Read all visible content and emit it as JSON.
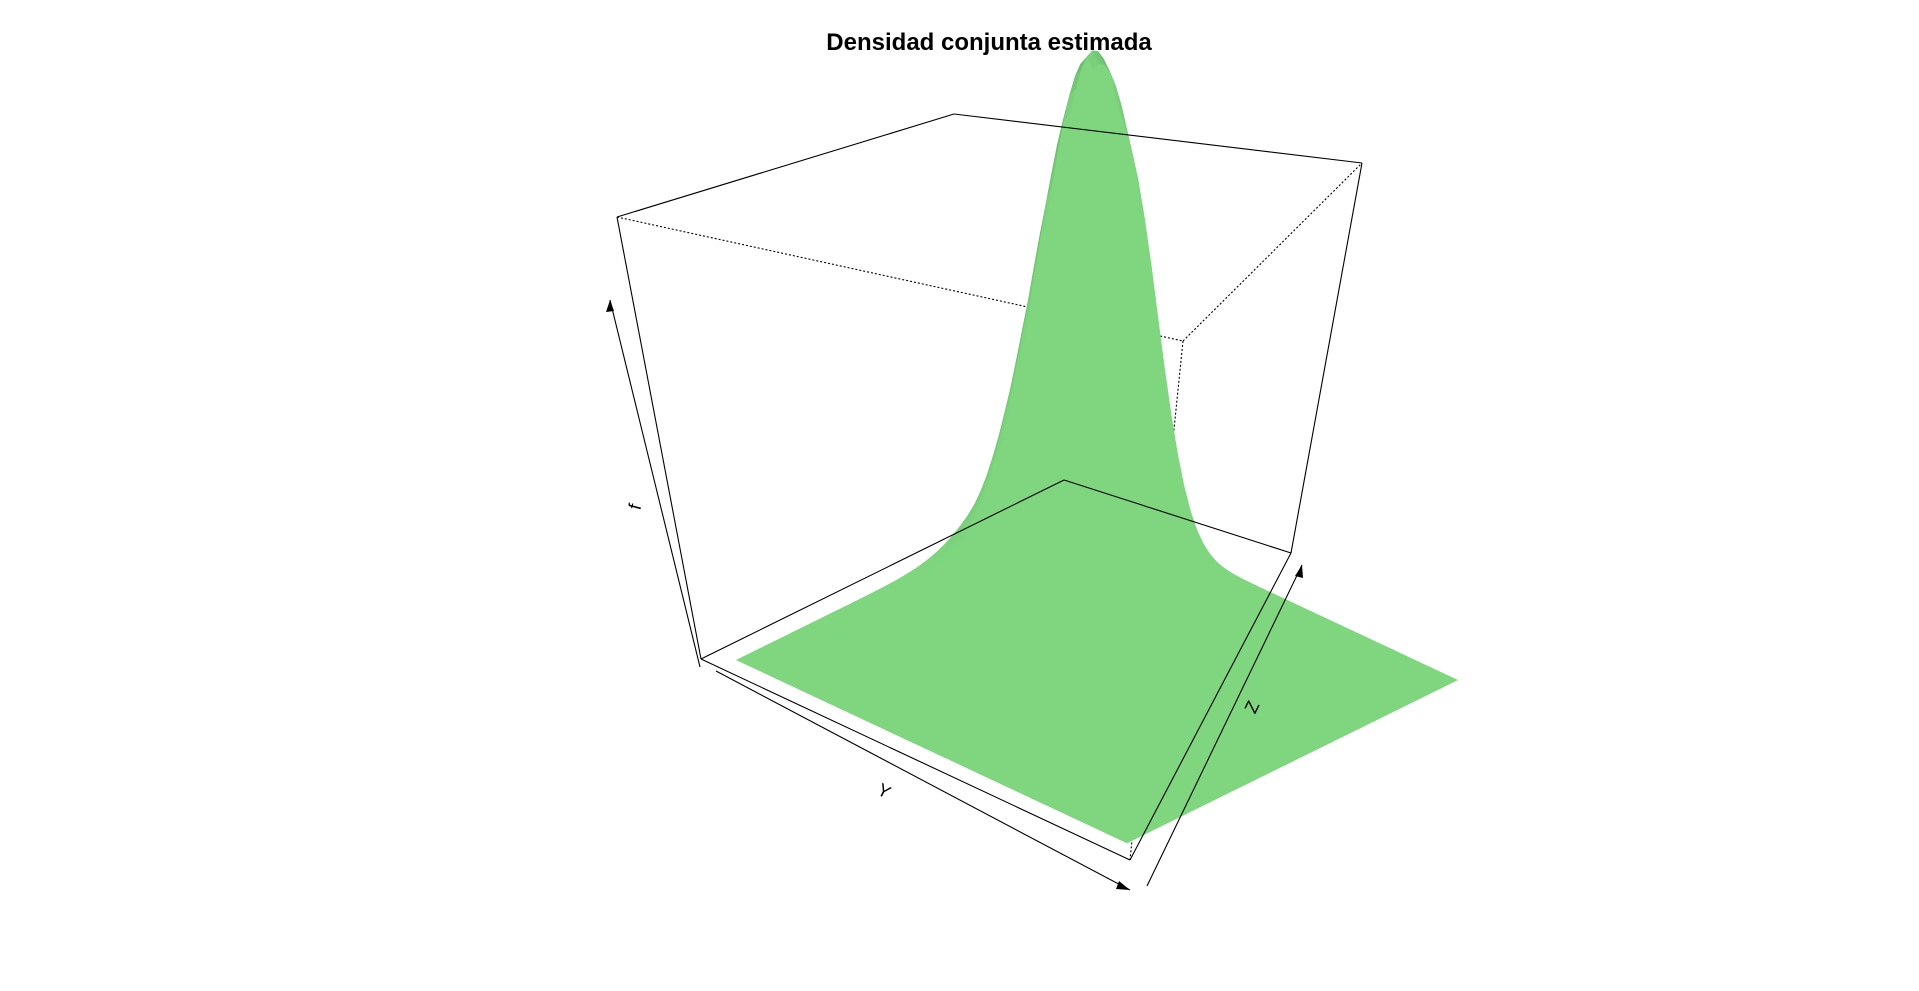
{
  "chart_data": {
    "type": "surface3d",
    "title": "Densidad conjunta estimada",
    "xlabel": "Y",
    "ylabel": "Z",
    "zlabel": "f",
    "surface_color": "#7fd67f",
    "shadow_color": "#4a8f52",
    "box": true,
    "axes_arrows": true,
    "peak": {
      "y": 0.15,
      "z": 0.9,
      "f_relative": 1.0
    },
    "spread": {
      "y": 0.08,
      "z": 0.14
    }
  }
}
